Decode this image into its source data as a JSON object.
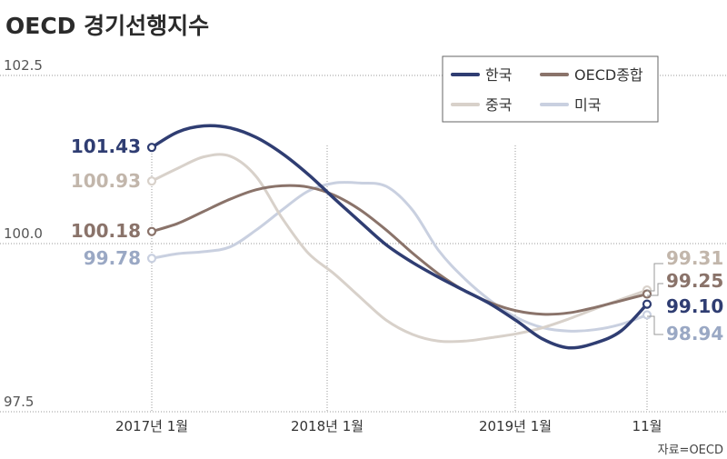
{
  "chart_data": {
    "type": "line",
    "title": "OECD 경기선행지수",
    "source": "자료=OECD",
    "ylim": [
      97.5,
      102.5
    ],
    "y_ticks": [
      "102.5",
      "100.0",
      "97.5"
    ],
    "x_ticks": [
      "2017년 1월",
      "2018년 1월",
      "2019년 1월",
      "11월"
    ],
    "grid": true,
    "legend_position": "top-right",
    "colors": {
      "korea": "#2f3d72",
      "oecd": "#8a736a",
      "china": "#d8d1ca",
      "usa": "#c9d0e0"
    },
    "series": [
      {
        "key": "korea",
        "name": "한국",
        "start_label": "101.43",
        "end_label": "99.10",
        "values": [
          101.43,
          101.66,
          101.75,
          101.72,
          101.58,
          101.34,
          101.03,
          100.67,
          100.32,
          99.98,
          99.72,
          99.5,
          99.3,
          99.1,
          98.85,
          98.58,
          98.45,
          98.52,
          98.7,
          99.1
        ]
      },
      {
        "key": "oecd",
        "name": "OECD종합",
        "start_label": "100.18",
        "end_label": "99.25",
        "values": [
          100.18,
          100.3,
          100.48,
          100.66,
          100.8,
          100.86,
          100.84,
          100.72,
          100.5,
          100.2,
          99.86,
          99.55,
          99.3,
          99.12,
          99.0,
          98.95,
          98.97,
          99.05,
          99.15,
          99.25
        ]
      },
      {
        "key": "china",
        "name": "중국",
        "start_label": "100.93",
        "end_label": "99.31",
        "values": [
          100.93,
          101.12,
          101.29,
          101.3,
          101.0,
          100.38,
          99.86,
          99.55,
          99.2,
          98.86,
          98.65,
          98.55,
          98.55,
          98.6,
          98.66,
          98.75,
          98.88,
          99.03,
          99.17,
          99.31
        ]
      },
      {
        "key": "usa",
        "name": "미국",
        "start_label": "99.78",
        "end_label": "98.94",
        "values": [
          99.78,
          99.85,
          99.88,
          99.95,
          100.2,
          100.5,
          100.78,
          100.9,
          100.9,
          100.85,
          100.5,
          99.9,
          99.48,
          99.15,
          98.9,
          98.75,
          98.7,
          98.72,
          98.8,
          98.94
        ]
      }
    ]
  }
}
